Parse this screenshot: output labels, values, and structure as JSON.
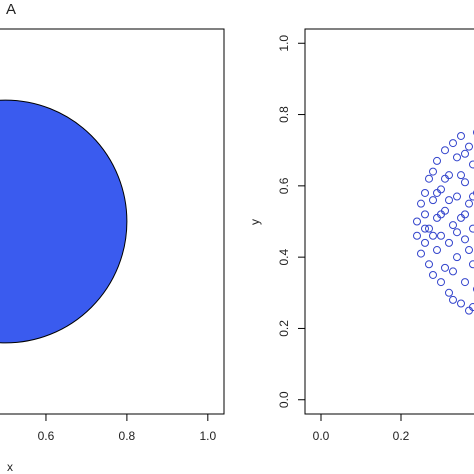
{
  "panel_label": "A",
  "chart_data": [
    {
      "type": "shape",
      "xlabel": "x",
      "shape": {
        "cx": 0.5,
        "cy": 0.5,
        "r": 0.3
      },
      "color": "#3a5bef",
      "xlim": [
        -0.04,
        1.04
      ],
      "ylim": [
        -0.04,
        1.04
      ],
      "xticks": [
        0.6,
        0.8,
        {
          "value": 1,
          "label": "1.0"
        }
      ]
    },
    {
      "type": "scatter",
      "ylabel": "y",
      "color": "#3344cc",
      "xlim": [
        -0.04,
        1.04
      ],
      "ylim": [
        -0.04,
        1.04
      ],
      "xticks": [
        {
          "value": 0,
          "label": "0.0"
        },
        0.2
      ],
      "yticks": [
        {
          "value": 0,
          "label": "0.0"
        },
        0.2,
        0.4,
        0.6,
        0.8,
        {
          "value": 1,
          "label": "1.0"
        }
      ],
      "x": [
        0.24,
        0.24,
        0.25,
        0.25,
        0.26,
        0.26,
        0.26,
        0.27,
        0.27,
        0.27,
        0.28,
        0.28,
        0.28,
        0.29,
        0.29,
        0.29,
        0.3,
        0.3,
        0.3,
        0.31,
        0.31,
        0.31,
        0.32,
        0.32,
        0.32,
        0.33,
        0.33,
        0.33,
        0.34,
        0.34,
        0.34,
        0.35,
        0.35,
        0.35,
        0.36,
        0.36,
        0.36,
        0.37,
        0.37,
        0.37,
        0.38,
        0.38,
        0.38,
        0.38,
        0.39,
        0.39,
        0.39,
        0.3,
        0.32,
        0.34,
        0.36,
        0.28,
        0.26,
        0.35,
        0.33,
        0.31,
        0.37,
        0.29,
        0.36,
        0.38
      ],
      "y": [
        0.5,
        0.46,
        0.55,
        0.41,
        0.58,
        0.44,
        0.52,
        0.38,
        0.62,
        0.48,
        0.35,
        0.56,
        0.64,
        0.42,
        0.51,
        0.67,
        0.33,
        0.59,
        0.46,
        0.7,
        0.37,
        0.53,
        0.3,
        0.63,
        0.44,
        0.72,
        0.49,
        0.28,
        0.57,
        0.4,
        0.68,
        0.27,
        0.74,
        0.51,
        0.33,
        0.61,
        0.45,
        0.25,
        0.71,
        0.55,
        0.38,
        0.66,
        0.26,
        0.48,
        0.75,
        0.31,
        0.58,
        0.52,
        0.56,
        0.47,
        0.52,
        0.46,
        0.48,
        0.63,
        0.36,
        0.62,
        0.42,
        0.58,
        0.69,
        0.57
      ]
    }
  ]
}
